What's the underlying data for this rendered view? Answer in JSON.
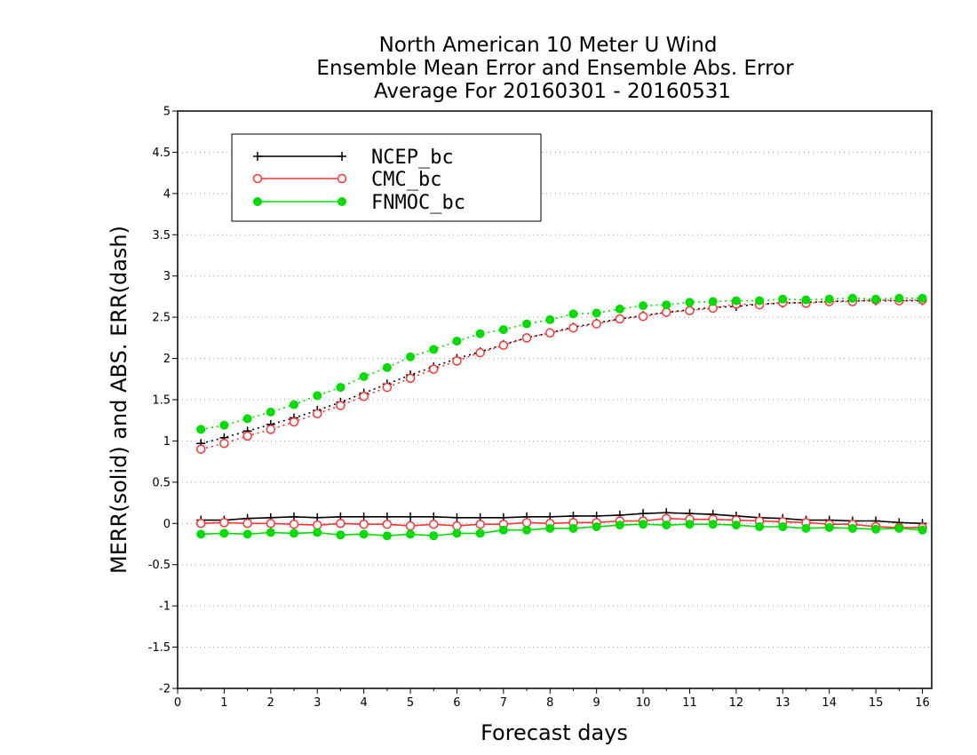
{
  "chart_data": {
    "type": "line",
    "title": [
      "North American 10 Meter U Wind",
      "Ensemble Mean Error and Ensemble Abs. Error",
      "Average For 20160301 - 20160531"
    ],
    "xlabel": "Forecast days",
    "ylabel": "MERR(solid) and ABS. ERR(dash)",
    "xlim": [
      0,
      16.2
    ],
    "ylim": [
      -2,
      5
    ],
    "xticks": [
      "0",
      "1",
      "2",
      "3",
      "4",
      "5",
      "6",
      "7",
      "8",
      "9",
      "10",
      "11",
      "12",
      "13",
      "14",
      "15",
      "16"
    ],
    "yticks": [
      "-2",
      "-1.5",
      "-1",
      "-0.5",
      "0",
      "0.5",
      "1",
      "1.5",
      "2",
      "2.5",
      "3",
      "3.5",
      "4",
      "4.5",
      "5"
    ],
    "grid": true,
    "legend_position": "top-left",
    "x": [
      0.5,
      1,
      1.5,
      2,
      2.5,
      3,
      3.5,
      4,
      4.5,
      5,
      5.5,
      6,
      6.5,
      7,
      7.5,
      8,
      8.5,
      9,
      9.5,
      10,
      10.5,
      11,
      11.5,
      12,
      12.5,
      13,
      13.5,
      14,
      14.5,
      15,
      15.5,
      16
    ],
    "series": [
      {
        "name": "NCEP_bc",
        "color": "#000000",
        "marker": "plus",
        "merr": [
          0.04,
          0.04,
          0.06,
          0.07,
          0.08,
          0.07,
          0.08,
          0.08,
          0.08,
          0.08,
          0.08,
          0.07,
          0.07,
          0.07,
          0.08,
          0.08,
          0.09,
          0.09,
          0.1,
          0.12,
          0.13,
          0.12,
          0.11,
          0.09,
          0.07,
          0.06,
          0.04,
          0.04,
          0.03,
          0.03,
          0.01,
          0.0
        ],
        "abs_err": [
          0.97,
          1.04,
          1.12,
          1.2,
          1.28,
          1.37,
          1.47,
          1.58,
          1.69,
          1.8,
          1.9,
          2.0,
          2.08,
          2.17,
          2.25,
          2.31,
          2.38,
          2.43,
          2.48,
          2.52,
          2.56,
          2.59,
          2.62,
          2.63,
          2.66,
          2.67,
          2.68,
          2.69,
          2.7,
          2.7,
          2.7,
          2.7
        ]
      },
      {
        "name": "CMC_bc",
        "color": "#ff3333",
        "marker": "open-circle",
        "merr": [
          0.0,
          0.01,
          0.0,
          0.0,
          -0.01,
          -0.02,
          0.0,
          -0.01,
          -0.01,
          -0.03,
          -0.01,
          -0.03,
          -0.01,
          -0.01,
          0.01,
          0.0,
          0.01,
          0.01,
          0.03,
          0.03,
          0.06,
          0.05,
          0.05,
          0.04,
          0.03,
          0.02,
          0.01,
          -0.01,
          -0.01,
          -0.04,
          -0.05,
          -0.05
        ],
        "abs_err": [
          0.9,
          0.97,
          1.06,
          1.14,
          1.23,
          1.33,
          1.43,
          1.54,
          1.65,
          1.76,
          1.87,
          1.97,
          2.07,
          2.16,
          2.25,
          2.31,
          2.37,
          2.42,
          2.48,
          2.51,
          2.56,
          2.58,
          2.61,
          2.66,
          2.65,
          2.68,
          2.67,
          2.69,
          2.69,
          2.71,
          2.7,
          2.71
        ]
      },
      {
        "name": "FNMOC_bc",
        "color": "#00dd00",
        "marker": "filled-circle",
        "merr": [
          -0.13,
          -0.12,
          -0.13,
          -0.11,
          -0.12,
          -0.11,
          -0.14,
          -0.13,
          -0.15,
          -0.13,
          -0.15,
          -0.12,
          -0.12,
          -0.08,
          -0.08,
          -0.06,
          -0.06,
          -0.04,
          -0.02,
          -0.01,
          -0.02,
          -0.01,
          -0.01,
          -0.02,
          -0.04,
          -0.04,
          -0.06,
          -0.05,
          -0.06,
          -0.07,
          -0.06,
          -0.08
        ],
        "abs_err": [
          1.14,
          1.19,
          1.27,
          1.35,
          1.44,
          1.55,
          1.65,
          1.78,
          1.89,
          2.02,
          2.11,
          2.21,
          2.3,
          2.35,
          2.42,
          2.47,
          2.54,
          2.55,
          2.6,
          2.64,
          2.65,
          2.68,
          2.69,
          2.7,
          2.7,
          2.72,
          2.71,
          2.72,
          2.73,
          2.72,
          2.73,
          2.73
        ]
      }
    ]
  }
}
